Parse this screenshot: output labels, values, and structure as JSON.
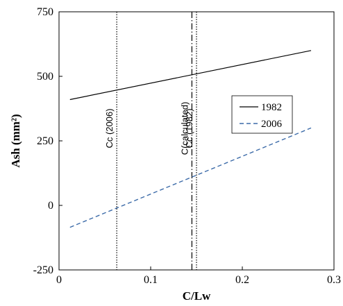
{
  "chart_data": {
    "type": "line",
    "title": "",
    "xlabel": "C/Lw",
    "ylabel": "Ash (mm²)",
    "xlim": [
      0,
      0.3
    ],
    "ylim": [
      -250,
      750
    ],
    "x_ticks": [
      0,
      0.1,
      0.2,
      0.3
    ],
    "y_ticks": [
      -250,
      0,
      250,
      500,
      750
    ],
    "x_tick_labels": [
      "0",
      "0.1",
      "0.2",
      "0.3"
    ],
    "y_tick_labels": [
      "-250",
      "0",
      "250",
      "500",
      "750"
    ],
    "grid": false,
    "legend_position": "right",
    "series": [
      {
        "name": "1982",
        "x": [
          0.012,
          0.275
        ],
        "values": [
          410,
          600
        ],
        "color": "#000000",
        "dash": "solid"
      },
      {
        "name": "2006",
        "x": [
          0.012,
          0.275
        ],
        "values": [
          -85,
          300
        ],
        "color": "#3b6aa8",
        "dash": "dashed"
      }
    ],
    "vertical_lines": [
      {
        "label": "Cc (2006)",
        "x": 0.063,
        "style": "dotted"
      },
      {
        "label": "C(calculated)",
        "x": 0.145,
        "style": "dashdot"
      },
      {
        "label": "Cc (1982)",
        "x": 0.15,
        "style": "dotted"
      }
    ]
  }
}
